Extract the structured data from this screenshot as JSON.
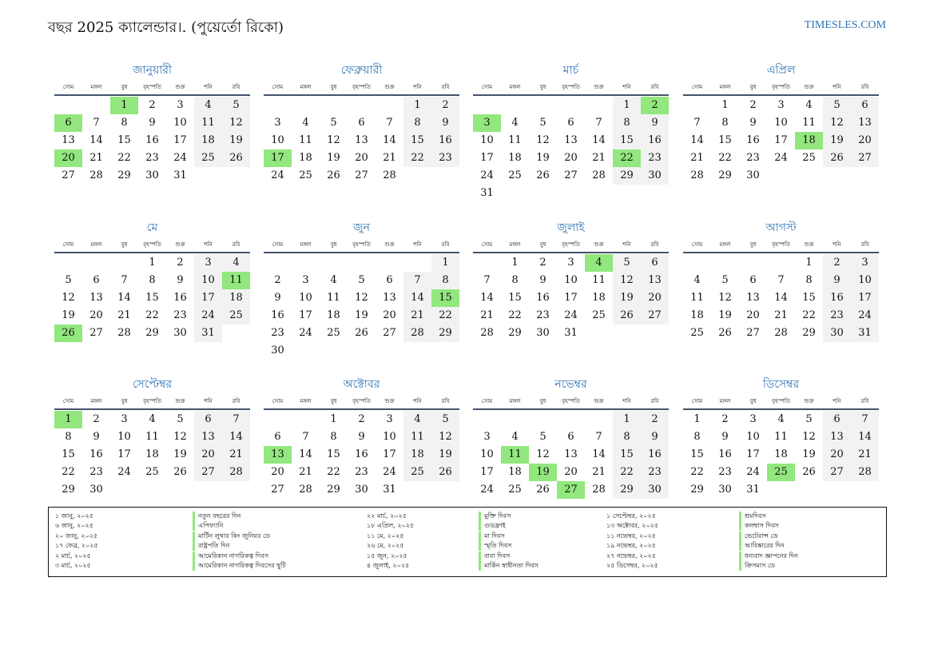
{
  "header": {
    "title": "বছর 2025 ক্যালেন্ডার।. (পুয়ের্তো রিকো)",
    "site": "TIMESLES.COM"
  },
  "colors": {
    "accent": "#2e74b5",
    "holiday": "#92e77e",
    "weekend": "#f2f2f2",
    "rule": "#44546a"
  },
  "weekdays": [
    "সোম",
    "মঙ্গল",
    "বুধ",
    "বৃহস্পতি",
    "শুক্র",
    "শনি",
    "রবি"
  ],
  "months": [
    {
      "name": "জানুয়ারী",
      "offset": 2,
      "days": 31,
      "holidays": [
        1,
        6,
        20
      ]
    },
    {
      "name": "ফেব্রুয়ারী",
      "offset": 5,
      "days": 28,
      "holidays": [
        17
      ]
    },
    {
      "name": "মার্চ",
      "offset": 5,
      "days": 31,
      "holidays": [
        2,
        3,
        22
      ]
    },
    {
      "name": "এপ্রিল",
      "offset": 1,
      "days": 30,
      "holidays": [
        18
      ]
    },
    {
      "name": "মে",
      "offset": 3,
      "days": 31,
      "holidays": [
        11,
        26
      ]
    },
    {
      "name": "জুন",
      "offset": 6,
      "days": 30,
      "holidays": [
        15
      ]
    },
    {
      "name": "জুলাই",
      "offset": 1,
      "days": 31,
      "holidays": [
        4
      ]
    },
    {
      "name": "আগস্ট",
      "offset": 4,
      "days": 31,
      "holidays": []
    },
    {
      "name": "সেপ্টেম্বর",
      "offset": 0,
      "days": 30,
      "holidays": [
        1
      ]
    },
    {
      "name": "অক্টোবর",
      "offset": 2,
      "days": 31,
      "holidays": [
        13
      ]
    },
    {
      "name": "নভেম্বর",
      "offset": 5,
      "days": 30,
      "holidays": [
        11,
        19,
        27
      ]
    },
    {
      "name": "ডিসেম্বর",
      "offset": 0,
      "days": 31,
      "holidays": [
        25
      ]
    }
  ],
  "legend": [
    [
      {
        "date": "১ জানু, ২০২৫",
        "name": "নতুন বছরের দিন"
      },
      {
        "date": "৬ জানু, ২০২৫",
        "name": "এপিফ্যানি"
      },
      {
        "date": "২০ জানু, ২০২৫",
        "name": "মার্টিন লুথার কিং জুনিয়র ডে"
      },
      {
        "date": "১৭ ফেব্র, ২০২৫",
        "name": "রাষ্ট্রপতি দিন"
      },
      {
        "date": "২ মার্চ, ২০২৫",
        "name": "আমেরিকান নাগরিকত্ব দিবস"
      },
      {
        "date": "৩ মার্চ, ২০২৫",
        "name": "আমেরিকান নাগরিকত্ব দিবসের ছুটি"
      }
    ],
    [
      {
        "date": "২২ মার্চ, ২০২৫",
        "name": "মুক্তি দিবস"
      },
      {
        "date": "১৮ এপ্রিল, ২০২৫",
        "name": "গুডফ্রাই"
      },
      {
        "date": "১১ মে, ২০২৫",
        "name": "মা দিবস"
      },
      {
        "date": "২৬ মে, ২০২৫",
        "name": "স্মৃতি দিবস"
      },
      {
        "date": "১৫ জুন, ২০২৫",
        "name": "বাবা দিবস"
      },
      {
        "date": "৪ জুলাই, ২০২৫",
        "name": "মার্কিন স্বাধীনতা দিবস"
      }
    ],
    [
      {
        "date": "১ সেপ্টেম্বর, ২০২৫",
        "name": "শ্রমদিবস"
      },
      {
        "date": "১৩ অক্টোবর, ২০২৫",
        "name": "কলম্বাস দিবস"
      },
      {
        "date": "১১ নভেম্বর, ২০২৫",
        "name": "ভেটেরান্স ডে"
      },
      {
        "date": "১৯ নভেম্বর, ২০২৫",
        "name": "আবিষ্কারের দিন"
      },
      {
        "date": "২৭ নভেম্বর, ২০২৫",
        "name": "ধন্যবাদ জ্ঞাপনের দিন"
      },
      {
        "date": "২৫ ডিসেম্বর, ২০২৫",
        "name": "ক্রিসমাস ডে"
      }
    ]
  ]
}
